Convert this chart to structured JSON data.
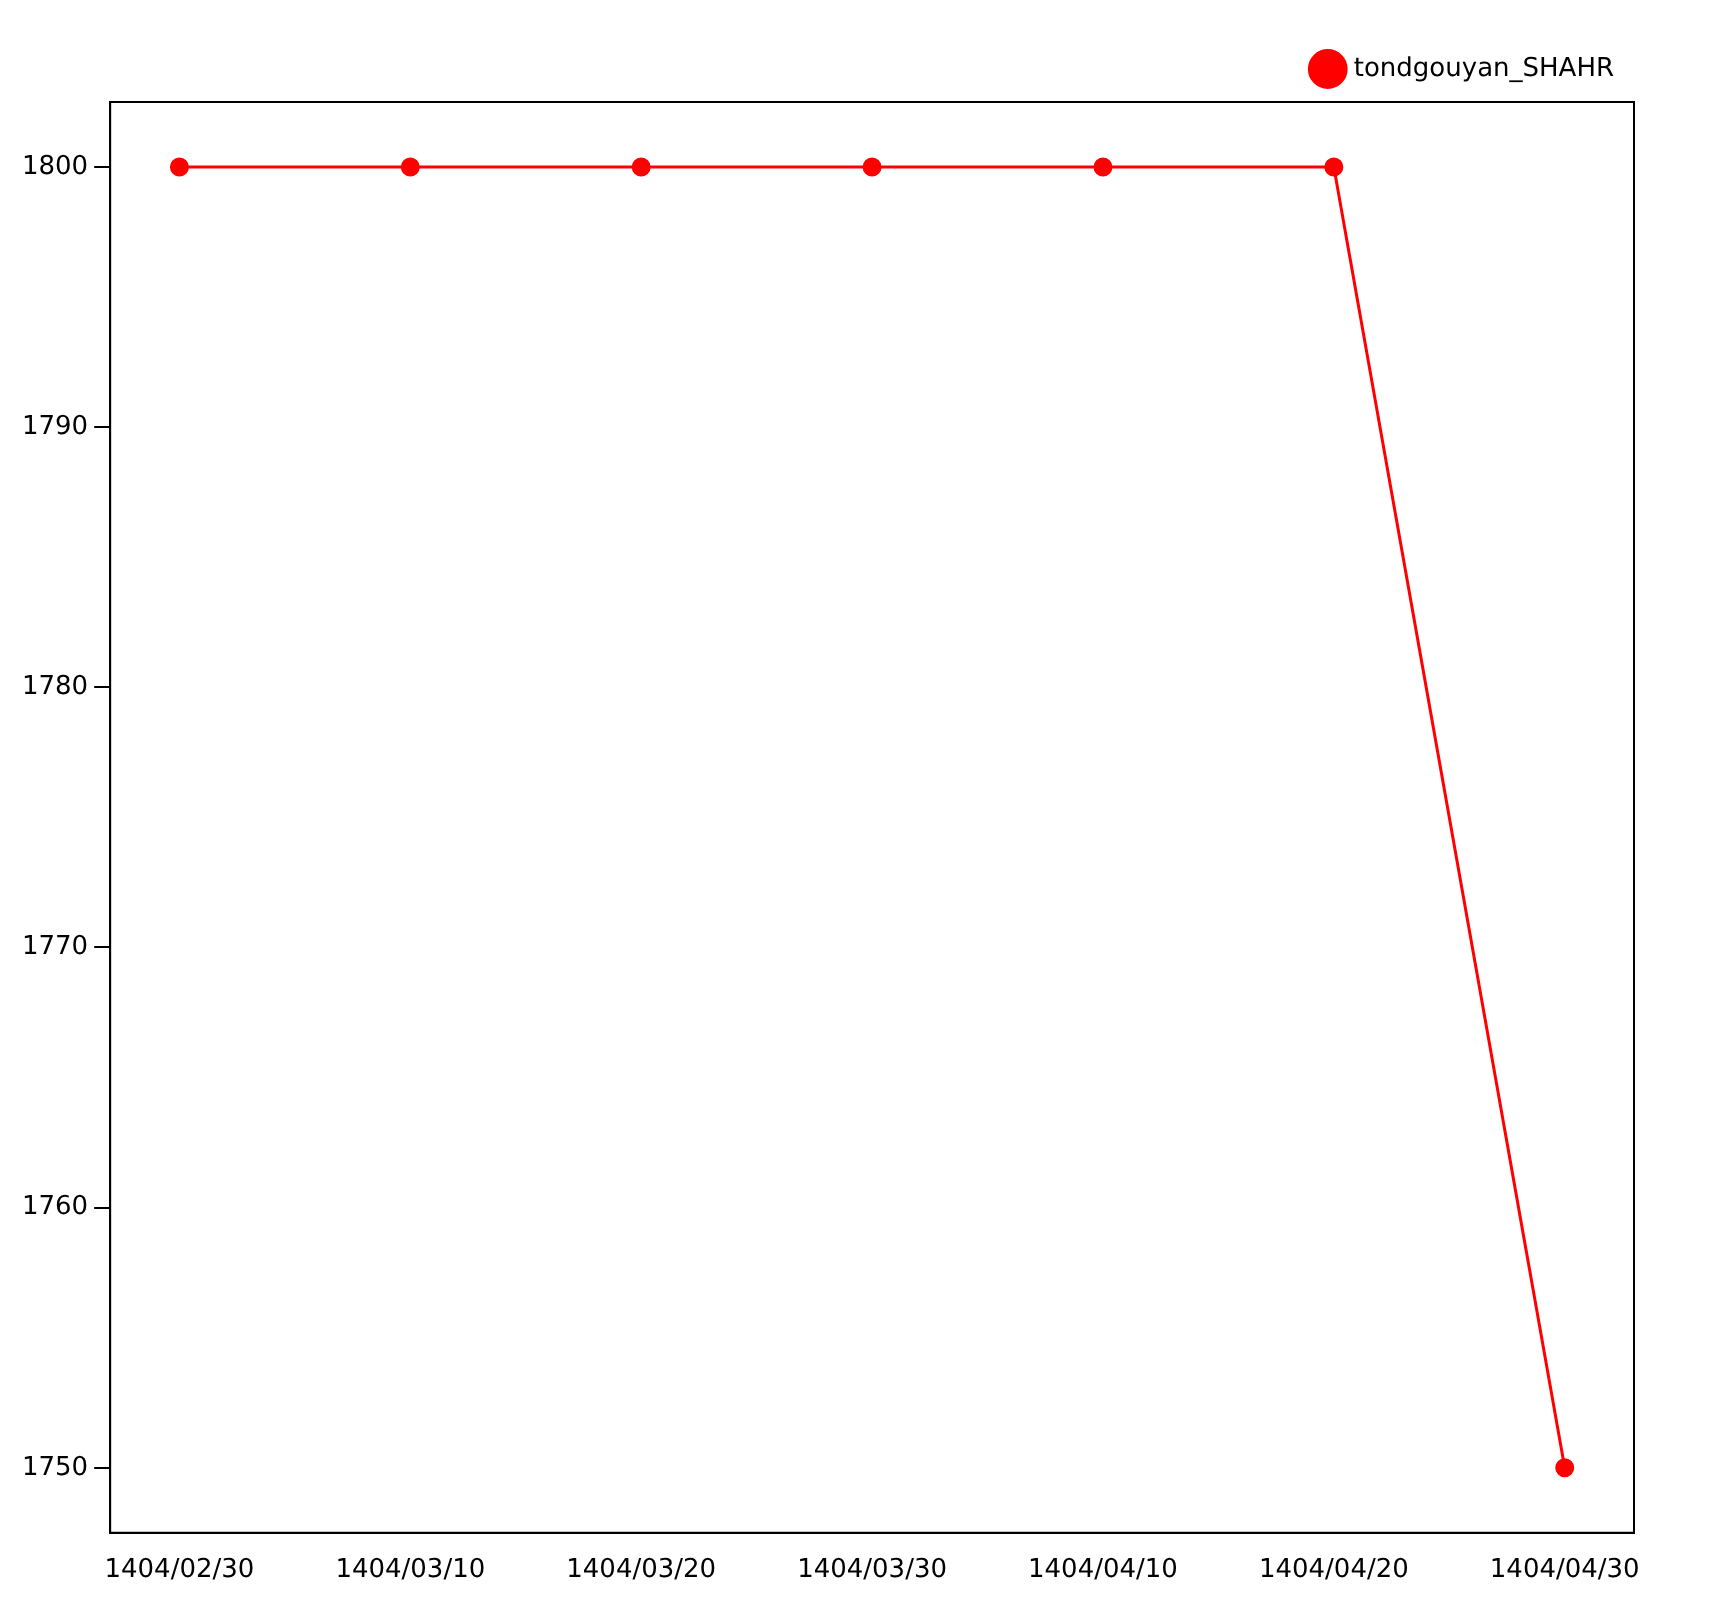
{
  "chart_data": {
    "type": "line",
    "categories": [
      "1404/02/30",
      "1404/03/10",
      "1404/03/20",
      "1404/03/30",
      "1404/04/10",
      "1404/04/20",
      "1404/04/30"
    ],
    "series": [
      {
        "name": "tondgouyan_SHAHR",
        "color": "#ff0000",
        "values": [
          1800,
          1800,
          1800,
          1800,
          1800,
          1800,
          1750
        ]
      }
    ],
    "ylim": [
      1747.5,
      1802.5
    ],
    "yticks": [
      1750,
      1760,
      1770,
      1780,
      1790,
      1800
    ],
    "marker": "circle",
    "line_style": "solid",
    "legend": "top right",
    "grid": false
  }
}
